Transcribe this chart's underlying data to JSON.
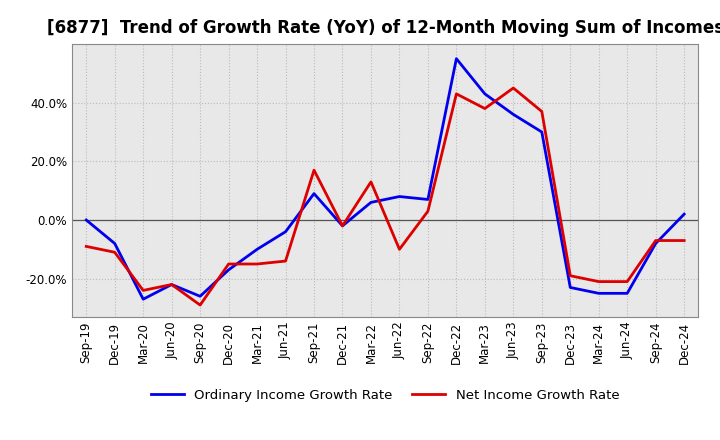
{
  "title": "[6877]  Trend of Growth Rate (YoY) of 12-Month Moving Sum of Incomes",
  "x_labels": [
    "Sep-19",
    "Dec-19",
    "Mar-20",
    "Jun-20",
    "Sep-20",
    "Dec-20",
    "Mar-21",
    "Jun-21",
    "Sep-21",
    "Dec-21",
    "Mar-22",
    "Jun-22",
    "Sep-22",
    "Dec-22",
    "Mar-23",
    "Jun-23",
    "Sep-23",
    "Dec-23",
    "Mar-24",
    "Jun-24",
    "Sep-24",
    "Dec-24"
  ],
  "ordinary_income": [
    0.0,
    -8.0,
    -27.0,
    -22.0,
    -26.0,
    -17.0,
    -10.0,
    -4.0,
    9.0,
    -2.0,
    6.0,
    8.0,
    7.0,
    55.0,
    43.0,
    36.0,
    30.0,
    -23.0,
    -25.0,
    -25.0,
    -8.0,
    2.0
  ],
  "net_income": [
    -9.0,
    -11.0,
    -24.0,
    -22.0,
    -29.0,
    -15.0,
    -15.0,
    -14.0,
    17.0,
    -2.0,
    13.0,
    -10.0,
    3.0,
    43.0,
    38.0,
    45.0,
    37.0,
    -19.0,
    -21.0,
    -21.0,
    -7.0,
    -7.0
  ],
  "ylim": [
    -33,
    60
  ],
  "yticks": [
    -20.0,
    0.0,
    20.0,
    40.0
  ],
  "ordinary_color": "#0000ee",
  "net_color": "#dd0000",
  "background_color": "#ffffff",
  "plot_bg_color": "#e8e8e8",
  "grid_color": "#bbbbbb",
  "zero_line_color": "#555555",
  "legend_ordinary": "Ordinary Income Growth Rate",
  "legend_net": "Net Income Growth Rate",
  "title_fontsize": 12,
  "axis_fontsize": 8.5,
  "legend_fontsize": 9.5
}
